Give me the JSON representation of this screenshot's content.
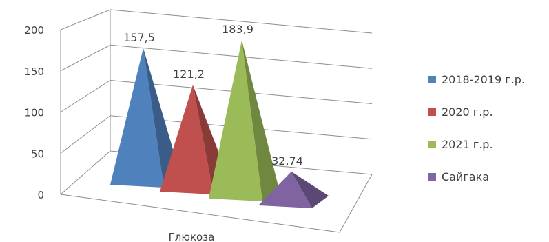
{
  "chart_data": {
    "type": "bar",
    "subtype": "3d-pyramid",
    "categories": [
      "Глюкоза"
    ],
    "series": [
      {
        "name": "2018-2019 г.р.",
        "values": [
          157.5
        ],
        "label": "157,5",
        "color": "#4f81bd"
      },
      {
        "name": "2020 г.р.",
        "values": [
          121.2
        ],
        "label": "121,2",
        "color": "#c0504d"
      },
      {
        "name": "2021 г.р.",
        "values": [
          183.9
        ],
        "label": "183,9",
        "color": "#9bbb59"
      },
      {
        "name": "Сайгака",
        "values": [
          32.74
        ],
        "label": "32,74",
        "color": "#8064a2"
      }
    ],
    "yticks": [
      "0",
      "50",
      "100",
      "150",
      "200"
    ],
    "ylim": [
      0,
      200
    ],
    "grid": true,
    "legend_position": "right"
  }
}
